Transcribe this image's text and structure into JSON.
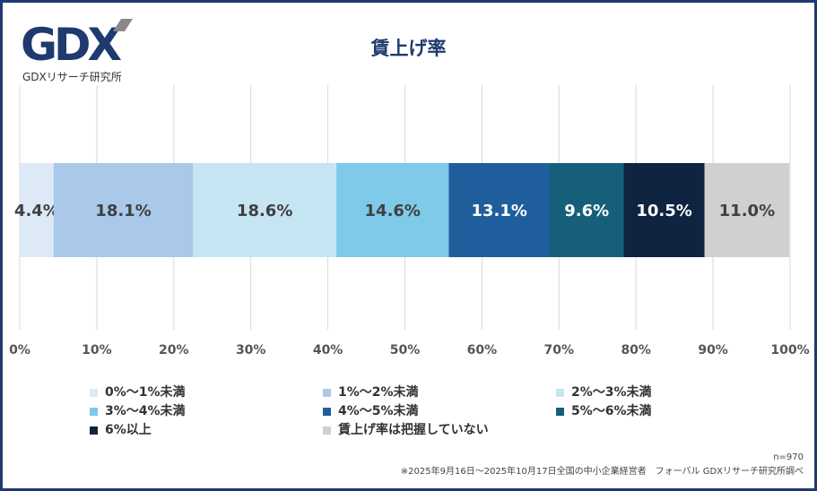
{
  "logo": {
    "text": "GDX",
    "subtitle": "GDXリサーチ研究所"
  },
  "chart_data": {
    "type": "bar",
    "orientation": "horizontal",
    "stacked": true,
    "title": "賃上げ率",
    "xlim": [
      0,
      100
    ],
    "xticks": [
      "0%",
      "10%",
      "20%",
      "30%",
      "40%",
      "50%",
      "60%",
      "70%",
      "80%",
      "90%",
      "100%"
    ],
    "grid": true,
    "legend_position": "bottom",
    "series": [
      {
        "name": "0%～1%未満",
        "value": 4.4,
        "label": "4.4%",
        "color": "#dde9f7"
      },
      {
        "name": "1%～2%未満",
        "value": 18.1,
        "label": "18.1%",
        "color": "#a9c8ea"
      },
      {
        "name": "2%～3%未満",
        "value": 18.6,
        "label": "18.6%",
        "color": "#c5e5f3"
      },
      {
        "name": "3%～4%未満",
        "value": 14.6,
        "label": "14.6%",
        "color": "#7fc9e9"
      },
      {
        "name": "4%～5%未満",
        "value": 13.1,
        "label": "13.1%",
        "color": "#1f5e9c"
      },
      {
        "name": "5%～6%未満",
        "value": 9.6,
        "label": "9.6%",
        "color": "#155f7a"
      },
      {
        "name": "6%以上",
        "value": 10.5,
        "label": "10.5%",
        "color": "#0f2440"
      },
      {
        "name": "賃上げ率は把握していない",
        "value": 11.0,
        "label": "11.0%",
        "color": "#d0d0d0"
      }
    ]
  },
  "footer": {
    "n": "n=970",
    "source": "※2025年9月16日～2025年10月17日全国の中小企業経営者　フォーバル GDXリサーチ研究所調べ"
  }
}
